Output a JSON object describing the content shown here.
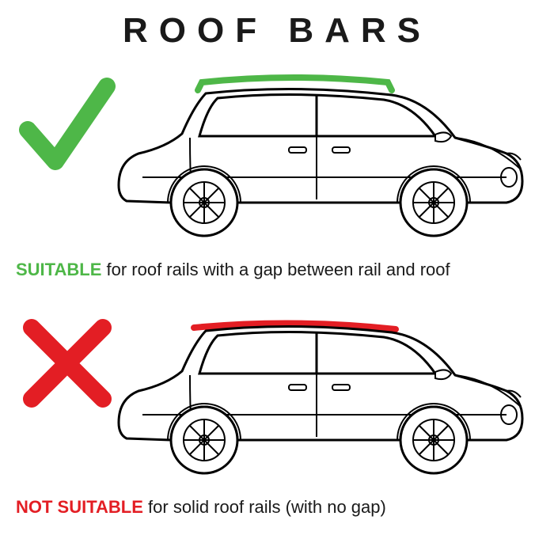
{
  "title": "ROOF BARS",
  "panels": [
    {
      "id": "suitable",
      "mark": "check",
      "mark_color": "#4eb748",
      "rail_color": "#4eb748",
      "rail_gap": true,
      "lead": "SUITABLE",
      "rest": " for roof rails with a gap between rail and roof"
    },
    {
      "id": "not-suitable",
      "mark": "cross",
      "mark_color": "#e31e24",
      "rail_color": "#e31e24",
      "rail_gap": false,
      "lead": "NOT SUITABLE",
      "rest": " for solid roof rails (with no gap)"
    }
  ],
  "style": {
    "title_color": "#1a1a1a",
    "title_fontsize": 44,
    "title_letter_spacing": 14,
    "caption_fontsize": 22,
    "car_outline": "#000000",
    "car_outline_width": 3,
    "background": "#ffffff",
    "mark_stroke_width": 22,
    "rail_stroke_width": 8
  }
}
